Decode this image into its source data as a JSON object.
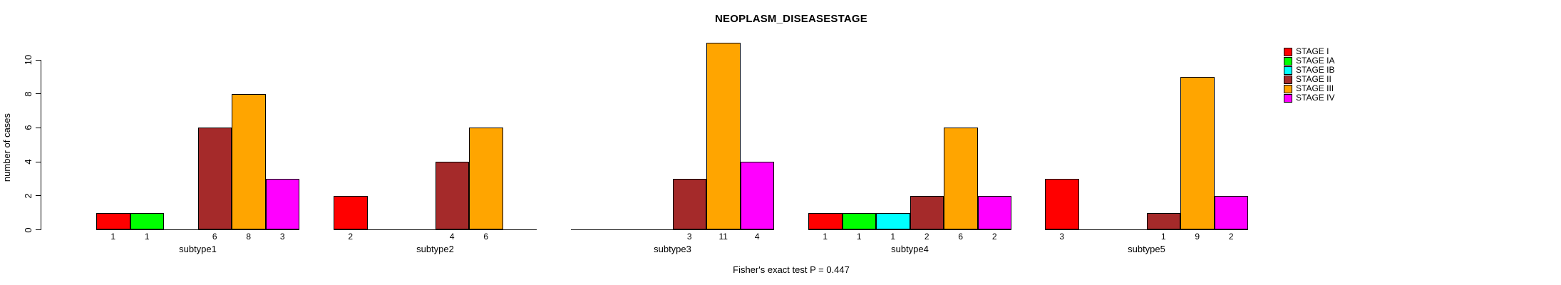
{
  "chart_data": {
    "type": "bar",
    "title": "NEOPLASM_DISEASESTAGE",
    "subtitle": "Fisher's exact test P = 0.447",
    "xlabel": "",
    "ylabel": "number of cases",
    "ylim": [
      0,
      10
    ],
    "yticks": [
      0,
      2,
      4,
      6,
      8,
      10
    ],
    "grid": false,
    "legend_position": "right",
    "value_labels": "shown under each non-zero bar",
    "categories": [
      "subtype1",
      "subtype2",
      "subtype3",
      "subtype4",
      "subtype5"
    ],
    "series": [
      {
        "name": "STAGE I",
        "color": "#FF0000",
        "values": [
          1,
          2,
          0,
          1,
          3
        ]
      },
      {
        "name": "STAGE IA",
        "color": "#00FF00",
        "values": [
          1,
          0,
          0,
          1,
          0
        ]
      },
      {
        "name": "STAGE IB",
        "color": "#00FFFF",
        "values": [
          0,
          0,
          0,
          1,
          0
        ]
      },
      {
        "name": "STAGE II",
        "color": "#A52A2A",
        "values": [
          6,
          4,
          3,
          2,
          1
        ]
      },
      {
        "name": "STAGE III",
        "color": "#FFA500",
        "values": [
          8,
          6,
          11,
          6,
          9
        ]
      },
      {
        "name": "STAGE IV",
        "color": "#FF00FF",
        "values": [
          3,
          0,
          4,
          2,
          2
        ]
      }
    ]
  }
}
